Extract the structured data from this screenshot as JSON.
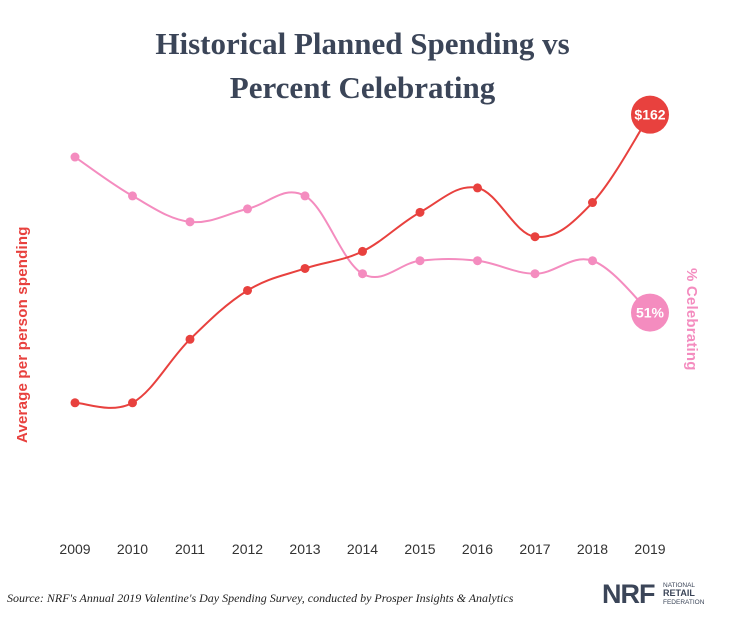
{
  "title_line1": "Historical Planned Spending vs",
  "title_line2": "Percent Celebrating",
  "ylabel_left": "Average per person spending",
  "ylabel_right": "% Celebrating",
  "source": "Source: NRF's Annual 2019 Valentine's Day Spending Survey, conducted by Prosper Insights & Analytics",
  "logo": {
    "text": "NRF",
    "tagline_line1": "NATIONAL",
    "tagline_line2": "RETAIL",
    "tagline_line3": "FEDERATION"
  },
  "colors": {
    "spending": "#e8413e",
    "celebrating": "#f48cbf",
    "title": "#3b4558",
    "logo": "#3b4558"
  },
  "chart_data": {
    "type": "line",
    "categories": [
      "2009",
      "2010",
      "2011",
      "2012",
      "2013",
      "2014",
      "2015",
      "2016",
      "2017",
      "2018",
      "2019"
    ],
    "series": [
      {
        "name": "Average per person spending",
        "axis": "left",
        "values": [
          103,
          103,
          116,
          126,
          130.5,
          134,
          142,
          147,
          137,
          144,
          162
        ],
        "end_label": "$162"
      },
      {
        "name": "% Celebrating",
        "axis": "right",
        "values": [
          63,
          60,
          58,
          59,
          60,
          54,
          55,
          55,
          54,
          55,
          51
        ],
        "end_label": "51%"
      }
    ],
    "ylim_left": [
      79,
      165
    ],
    "ylim_right": [
      35,
      67.4
    ],
    "grid": false,
    "legend": "none"
  }
}
